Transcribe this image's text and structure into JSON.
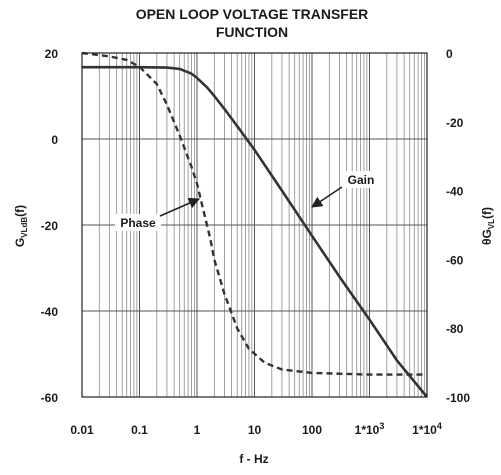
{
  "chart_data": {
    "type": "line",
    "title": "OPEN LOOP VOLTAGE TRANSFER",
    "subtitle": "FUNCTION",
    "xlabel": "f - Hz",
    "x_scale": "log",
    "xlim": [
      0.01,
      10000
    ],
    "x_ticks": [
      {
        "value": 0.01,
        "label": "0.01"
      },
      {
        "value": 0.1,
        "label": "0.1"
      },
      {
        "value": 1,
        "label": "1"
      },
      {
        "value": 10,
        "label": "10"
      },
      {
        "value": 100,
        "label": "100"
      },
      {
        "value": 1000,
        "label": "1*10",
        "exp": "3"
      },
      {
        "value": 10000,
        "label": "1*10",
        "exp": "4"
      }
    ],
    "y_left": {
      "label_main": "G",
      "label_sub": "VLdB",
      "label_tail": "(f)",
      "lim": [
        -60,
        20
      ],
      "ticks": [
        "20",
        "0",
        "-20",
        "-40",
        "-60"
      ]
    },
    "y_right": {
      "label_main": "θG",
      "label_sub": "VL",
      "label_tail": "(f)",
      "lim": [
        -100,
        0
      ],
      "ticks": [
        "0",
        "-20",
        "-40",
        "-60",
        "-80",
        "-100"
      ]
    },
    "grid": true,
    "series": [
      {
        "name": "Gain",
        "axis": "left",
        "style": "solid",
        "color": "#333333",
        "points": [
          [
            0.01,
            16.7
          ],
          [
            0.1,
            16.7
          ],
          [
            0.3,
            16.6
          ],
          [
            0.5,
            16.3
          ],
          [
            0.8,
            15.2
          ],
          [
            1,
            14.2
          ],
          [
            1.5,
            12.0
          ],
          [
            2,
            10.0
          ],
          [
            3,
            7.0
          ],
          [
            5,
            3.0
          ],
          [
            10,
            -2.5
          ],
          [
            30,
            -12.0
          ],
          [
            100,
            -22.5
          ],
          [
            300,
            -32.0
          ],
          [
            1000,
            -42.0
          ],
          [
            3000,
            -51.5
          ],
          [
            10000,
            -60.0
          ]
        ]
      },
      {
        "name": "Phase",
        "axis": "right",
        "style": "dashed",
        "color": "#333333",
        "points": [
          [
            0.01,
            0
          ],
          [
            0.03,
            -1
          ],
          [
            0.06,
            -2
          ],
          [
            0.1,
            -4
          ],
          [
            0.2,
            -9
          ],
          [
            0.3,
            -15
          ],
          [
            0.5,
            -24
          ],
          [
            0.8,
            -33
          ],
          [
            1,
            -38
          ],
          [
            1.3,
            -46
          ],
          [
            1.7,
            -54
          ],
          [
            2,
            -60
          ],
          [
            3,
            -70
          ],
          [
            5,
            -80
          ],
          [
            8,
            -86
          ],
          [
            15,
            -90
          ],
          [
            30,
            -92
          ],
          [
            100,
            -93
          ],
          [
            1000,
            -93.5
          ],
          [
            10000,
            -93.5
          ]
        ]
      }
    ],
    "annotations": [
      {
        "text": "Gain",
        "series": "Gain",
        "x": 100,
        "y": -19
      },
      {
        "text": "Phase",
        "series": "Phase",
        "x": 1,
        "y": -42
      }
    ]
  }
}
